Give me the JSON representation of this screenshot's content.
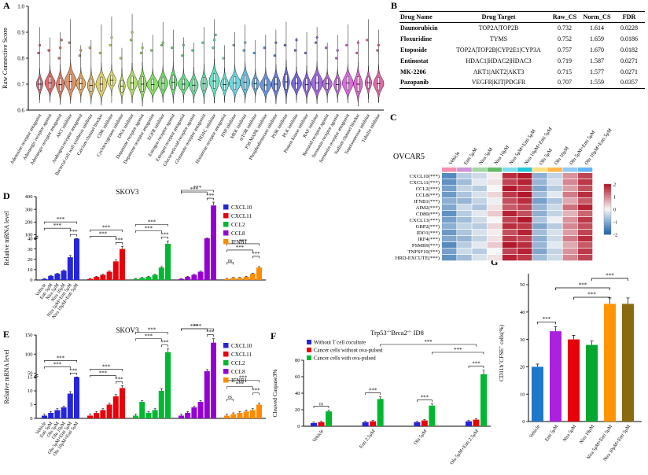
{
  "panelA": {
    "label": "A",
    "ylabel": "Raw Connective Score",
    "chart_data": {
      "type": "violin",
      "ylim": [
        0.6,
        1.0
      ],
      "yticks": [
        0.6,
        0.7,
        0.8,
        0.9,
        1.0
      ],
      "palette": {
        "start_hue": 350,
        "hue_step": 10.3,
        "sat": 66,
        "light": 60
      },
      "categories": [
        "Adenosine receptor antagonist",
        "Adrenergic receptor agonist",
        "Adrenergic receptor antagonist",
        "AKT inhibitor",
        "Androgen receptor antagonist",
        "Bacterial cell wall synthesis inhibitor",
        "Calcium channel blocker",
        "CDK inhibitor",
        "Cyclooxygenase inhibitor",
        "DNA inhibitor",
        "Dopamine receptor agonist",
        "Dopamine receptor antagonist",
        "EGFR inhibitor",
        "Estrogen receptor agonist",
        "Estrogen receptor antagonist",
        "Glucocorticoid receptor agonist",
        "Glutamate receptor antagonist",
        "HDAC inhibitor",
        "Histamine receptor antagonist",
        "HSP inhibitor",
        "MEK inhibitor",
        "mTOR inhibitor",
        "P38 MAPK inhibitor",
        "Phosphodiesterase inhibitor",
        "PI3K inhibitor",
        "PLK inhibitor",
        "Protein kinase inhibitor",
        "RAF inhibitor",
        "Retinoid receptor agonist",
        "Serotonin receptor agonist",
        "Serotonin receptor antagonist",
        "Sodium channel blocker",
        "Topoisomerase inhibitor",
        "Tubulin inhibitor"
      ],
      "medians": [
        0.7,
        0.705,
        0.698,
        0.71,
        0.702,
        0.695,
        0.7,
        0.715,
        0.692,
        0.705,
        0.7,
        0.698,
        0.703,
        0.707,
        0.7,
        0.696,
        0.701,
        0.712,
        0.699,
        0.704,
        0.708,
        0.702,
        0.697,
        0.7,
        0.709,
        0.703,
        0.698,
        0.705,
        0.701,
        0.699,
        0.704,
        0.7,
        0.706,
        0.702
      ],
      "tops": [
        0.92,
        0.88,
        0.9,
        0.95,
        0.85,
        0.87,
        0.93,
        0.96,
        0.84,
        0.97,
        0.86,
        0.89,
        0.94,
        0.91,
        0.88,
        0.86,
        0.92,
        0.95,
        0.85,
        0.9,
        0.93,
        0.87,
        0.89,
        0.91,
        0.94,
        0.88,
        0.9,
        0.92,
        0.86,
        0.89,
        0.93,
        0.87,
        0.95,
        0.91
      ],
      "whisker_bottom": 0.628,
      "outliers": [
        [
          0.82,
          0.85
        ],
        [
          0.83
        ],
        [
          0.8,
          0.84,
          0.87
        ],
        [
          0.86
        ],
        [
          0.81,
          0.83
        ],
        [
          0.84
        ],
        [
          0.82
        ],
        [
          0.85,
          0.88
        ],
        [
          0.8
        ],
        [
          0.87,
          0.9
        ],
        [
          0.82,
          0.84
        ],
        [
          0.83
        ],
        [
          0.85,
          0.86
        ],
        [
          0.84
        ],
        [
          0.81,
          0.85
        ],
        [
          0.83
        ],
        [
          0.86
        ],
        [
          0.84,
          0.87,
          0.89
        ],
        [
          0.8
        ],
        [
          0.85
        ],
        [
          0.83,
          0.86
        ],
        [
          0.82
        ],
        [
          0.84
        ],
        [
          0.81,
          0.86
        ],
        [
          0.85
        ],
        [
          0.83,
          0.87
        ],
        [
          0.82
        ],
        [
          0.86,
          0.88
        ],
        [
          0.84
        ],
        [
          0.8,
          0.83
        ],
        [
          0.85
        ],
        [
          0.82,
          0.86
        ],
        [
          0.87
        ],
        [
          0.83,
          0.85
        ]
      ]
    }
  },
  "panelB": {
    "label": "B",
    "table": {
      "headers": [
        "Drug Name",
        "Drug Target",
        "Raw_CS",
        "Norm_CS",
        "FDR"
      ],
      "rows": [
        [
          "Daunorubicin",
          "TOP2A|TOP2B",
          "0.732",
          "1.614",
          "0.0228"
        ],
        [
          "Floxuridine",
          "TYMS",
          "0.752",
          "1.659",
          "0.0186"
        ],
        [
          "Etoposide",
          "TOP2A|TOP2B|CYP2E1|CYP3A",
          "0.757",
          "1.670",
          "0.0182"
        ],
        [
          "Entinostat",
          "HDAC1|HDAC2|HDAC3",
          "0.719",
          "1.587",
          "0.0271"
        ],
        [
          "MK-2206",
          "AKT1|AKT2|AKT3",
          "0.715",
          "1.577",
          "0.0271"
        ],
        [
          "Pazopanib",
          "VEGFR|KIT|PDGFR",
          "0.707",
          "1.559",
          "0.0357"
        ]
      ]
    }
  },
  "panelC": {
    "label": "C",
    "cell_line": "OVCAR5",
    "chart_data": {
      "type": "heatmap",
      "columns": [
        "Vehicle",
        "Enti 5μM",
        "Nira 5μM",
        "Nira 10μM",
        "Nira 5μM+Enti 5μM",
        "Nira 10μM+Enti 5μM",
        "Olu 5μM",
        "Olu 10μM",
        "Olu 5μM+Enti 5μM",
        "Olu 10μM+Enti 5μM"
      ],
      "column_colors": [
        "#f48fb1",
        "#ce93d8",
        "#a5d6a7",
        "#66bb6a",
        "#80deea",
        "#26c6da",
        "#ffe082",
        "#ffb74d",
        "#90caf9",
        "#64b5f6"
      ],
      "rows": [
        "CXCL10(***)",
        "CXCL11(***)",
        "CCL2(***)",
        "CCL8(***)",
        "IFNB1(***)",
        "AIM2(***)",
        "CD80(***)",
        "CXCL13(***)",
        "GBP2(***)",
        "IDO1(***)",
        "IRF4(***)",
        "PSMB9(***)",
        "TNFSF10(***)",
        "HRD-EXCUTE(***)"
      ],
      "matrix": [
        [
          -1.5,
          -0.6,
          -0.4,
          0.1,
          1.8,
          2.0,
          -1.0,
          -0.5,
          0.9,
          1.6
        ],
        [
          -1.4,
          -0.8,
          -0.2,
          0.2,
          1.6,
          1.9,
          -0.9,
          -0.3,
          1.0,
          1.7
        ],
        [
          -1.2,
          -0.5,
          -0.6,
          0.0,
          2.0,
          1.7,
          -1.1,
          -0.6,
          0.8,
          1.5
        ],
        [
          -1.3,
          -0.7,
          -0.3,
          0.3,
          1.7,
          2.0,
          -0.8,
          -0.2,
          1.1,
          1.8
        ],
        [
          -1.0,
          -0.9,
          -0.5,
          -0.1,
          1.5,
          1.8,
          -1.2,
          -0.7,
          0.7,
          1.4
        ],
        [
          -1.1,
          -0.4,
          -0.7,
          0.2,
          1.4,
          1.6,
          -0.9,
          -0.4,
          1.2,
          1.9
        ],
        [
          -1.4,
          -0.6,
          -0.2,
          0.4,
          1.9,
          1.5,
          -1.0,
          -0.5,
          0.6,
          1.3
        ],
        [
          -1.2,
          -0.8,
          -0.4,
          0.0,
          1.6,
          2.0,
          -0.7,
          -0.1,
          0.9,
          1.7
        ],
        [
          -1.0,
          -0.5,
          -0.6,
          0.3,
          1.8,
          1.7,
          -1.1,
          -0.6,
          1.0,
          1.5
        ],
        [
          -1.3,
          -0.7,
          -0.3,
          0.1,
          1.5,
          1.9,
          -0.8,
          -0.3,
          0.8,
          1.6
        ],
        [
          -1.1,
          -0.9,
          -0.5,
          0.2,
          1.7,
          1.6,
          -1.0,
          -0.4,
          1.1,
          1.8
        ],
        [
          -1.5,
          -0.6,
          -0.2,
          0.4,
          2.0,
          1.8,
          -0.9,
          -0.2,
          0.7,
          1.4
        ],
        [
          -1.2,
          -0.4,
          -0.6,
          0.0,
          1.6,
          1.9,
          -1.1,
          -0.5,
          0.9,
          1.7
        ],
        [
          -1.4,
          -0.8,
          -0.3,
          0.2,
          1.9,
          1.7,
          -0.8,
          -0.4,
          1.0,
          1.6
        ]
      ],
      "colorbar_ticks": [
        2,
        1,
        0,
        -1,
        -2
      ],
      "cmap": {
        "pos": "#b2182b",
        "mid": "#f7f7f7",
        "neg": "#2166ac"
      }
    }
  },
  "panelD": {
    "label": "D",
    "title": "SKOV3",
    "ylabel": "Relative mRNA level",
    "chart_data": {
      "type": "bar-grouped-broken-axis",
      "genes": [
        "CXCL10",
        "CXCL11",
        "CCL2",
        "CCL8",
        "IFNB1"
      ],
      "gene_colors": [
        "#2525d9",
        "#e8000b",
        "#00b830",
        "#9400d3",
        "#ff8c00"
      ],
      "treatments": [
        "Vehicle",
        "Enti 5μM",
        "Nira 5μM",
        "Nira 10μM",
        "Nira 5μM+Enti 5μM",
        "Nira 10μM+Enti 5μM"
      ],
      "values": [
        [
          1,
          4,
          6,
          9,
          22,
          40
        ],
        [
          1,
          3,
          5,
          8,
          18,
          30
        ],
        [
          1,
          2,
          3,
          5,
          12,
          35
        ],
        [
          1,
          3,
          5,
          8,
          45,
          330
        ],
        [
          1,
          2,
          2,
          3,
          6,
          12
        ]
      ],
      "axis": {
        "lower": {
          "max": 40,
          "ticks": [
            0,
            10,
            20,
            30,
            40
          ]
        },
        "upper": {
          "min": 100,
          "max": 400,
          "ticks": [
            100,
            200,
            300,
            400
          ]
        }
      },
      "brackets": [
        [
          [
            4,
            5,
            "***"
          ],
          [
            0,
            4,
            "***"
          ],
          [
            0,
            5,
            "***"
          ]
        ],
        [
          [
            4,
            5,
            "***"
          ],
          [
            0,
            4,
            "***"
          ],
          [
            0,
            5,
            "***"
          ]
        ],
        [
          [
            4,
            5,
            "***"
          ],
          [
            0,
            4,
            "***"
          ],
          [
            0,
            5,
            "***"
          ]
        ],
        [
          [
            4,
            5,
            "***"
          ],
          [
            0,
            4,
            "***"
          ],
          [
            0,
            5,
            "***"
          ]
        ],
        [
          [
            0,
            1,
            "ns"
          ],
          [
            4,
            5,
            "***"
          ],
          [
            0,
            4,
            "***"
          ],
          [
            0,
            5,
            "***"
          ]
        ]
      ]
    }
  },
  "panelE": {
    "label": "E",
    "title": "SKOV3",
    "ylabel": "Relative mRNA level",
    "chart_data": {
      "type": "bar-grouped-broken-axis",
      "genes": [
        "CXCL10",
        "CXCL11",
        "CCL2",
        "CCL8",
        "IFNB1"
      ],
      "gene_colors": [
        "#2525d9",
        "#e8000b",
        "#00b830",
        "#9400d3",
        "#ff8c00"
      ],
      "treatments": [
        "Vehicle",
        "Enti 5μM",
        "Olu 5μM",
        "Olu 10μM",
        "Olu 5μM+Enti 5μM",
        "Olu 10μM+Enti 5μM"
      ],
      "values": [
        [
          1,
          2,
          3,
          4,
          9,
          15
        ],
        [
          1,
          2,
          3,
          5,
          8,
          11
        ],
        [
          1,
          6,
          2,
          3,
          10,
          105
        ],
        [
          1,
          2,
          4,
          6,
          55,
          130
        ],
        [
          1,
          1.5,
          2,
          2.5,
          3,
          5
        ]
      ],
      "axis": {
        "lower": {
          "max": 15,
          "ticks": [
            0,
            5,
            10,
            15
          ]
        },
        "upper": {
          "min": 50,
          "max": 150,
          "ticks": [
            50,
            100,
            150
          ]
        }
      },
      "brackets": [
        [
          [
            4,
            5,
            "***"
          ],
          [
            0,
            4,
            "***"
          ],
          [
            0,
            5,
            "***"
          ]
        ],
        [
          [
            4,
            5,
            "***"
          ],
          [
            0,
            4,
            "***"
          ],
          [
            0,
            5,
            "***"
          ]
        ],
        [
          [
            4,
            5,
            "***"
          ],
          [
            0,
            4,
            "***"
          ],
          [
            0,
            5,
            "***"
          ]
        ],
        [
          [
            4,
            5,
            "***"
          ],
          [
            0,
            4,
            "***"
          ],
          [
            0,
            5,
            "***"
          ]
        ],
        [
          [
            0,
            1,
            "ns"
          ],
          [
            4,
            5,
            "***"
          ],
          [
            0,
            4,
            "***"
          ],
          [
            0,
            5,
            "***"
          ]
        ]
      ]
    }
  },
  "panelF": {
    "label": "F",
    "title_parts": [
      {
        "t": "Trp53"
      },
      {
        "t": "-/-",
        "sup": true
      },
      {
        "t": "Brca2"
      },
      {
        "t": "-/-",
        "sup": true
      },
      {
        "t": " ID8"
      }
    ],
    "ylabel": "Cleaved Caspase3%",
    "chart_data": {
      "type": "bar-grouped",
      "series": [
        {
          "name": "Without T cell coculture",
          "color": "#2525d9",
          "values": [
            4,
            5,
            5,
            6
          ]
        },
        {
          "name": "Cancer cells without ova-pulsed",
          "color": "#e8000b",
          "values": [
            5,
            6,
            7,
            8
          ]
        },
        {
          "name": "Cancer cells with ova-pulsed",
          "color": "#00b830",
          "values": [
            18,
            33,
            25,
            63
          ]
        }
      ],
      "categories": [
        "Vehicle",
        "Enti 2.5μM",
        "Olu 5μM",
        "Olu 5μM+Enti 2.5μM"
      ],
      "ylim": [
        0,
        80
      ],
      "yticks": [
        0,
        20,
        40,
        60,
        80
      ],
      "brackets": [
        {
          "a": [
            0,
            0
          ],
          "b": [
            0,
            2
          ],
          "label": "ns",
          "lvl": 0
        },
        {
          "a": [
            1,
            0
          ],
          "b": [
            1,
            2
          ],
          "label": "***",
          "lvl": 0
        },
        {
          "a": [
            2,
            0
          ],
          "b": [
            2,
            2
          ],
          "label": "***",
          "lvl": 0
        },
        {
          "a": [
            3,
            0
          ],
          "b": [
            3,
            2
          ],
          "label": "***",
          "lvl": 0
        },
        {
          "a": [
            2,
            2
          ],
          "b": [
            3,
            2
          ],
          "label": "***",
          "lvl": 1
        },
        {
          "a": [
            1,
            2
          ],
          "b": [
            3,
            1
          ],
          "label": "***",
          "lvl": 2
        }
      ]
    }
  },
  "panelG": {
    "label": "G",
    "ylabel_parts": [
      {
        "t": "CD11b"
      },
      {
        "t": "+",
        "sup": true
      },
      {
        "t": "CFSE"
      },
      {
        "t": "+",
        "sup": true
      },
      {
        "t": " cells(%)"
      }
    ],
    "chart_data": {
      "type": "bar",
      "categories": [
        "Vehicle",
        "Enti 5μM",
        "Nira 5μM",
        "Nira 10μM",
        "Nira 5μM+Enti 5μM",
        "Nira 10μM+Enti 5μM"
      ],
      "values": [
        20,
        33,
        30,
        28,
        43,
        43
      ],
      "colors": [
        "#1e78c8",
        "#aa22dd",
        "#e8000b",
        "#00a830",
        "#ff9500",
        "#8a6a10"
      ],
      "ylim": [
        0,
        50
      ],
      "yticks": [
        0,
        10,
        20,
        30,
        40,
        50
      ],
      "brackets": [
        {
          "a": 0,
          "b": 1,
          "label": "***",
          "lvl": 0
        },
        {
          "a": 2,
          "b": 4,
          "label": "***",
          "lvl": 1
        },
        {
          "a": 1,
          "b": 4,
          "label": "***",
          "lvl": 2
        },
        {
          "a": 3,
          "b": 5,
          "label": "***",
          "lvl": 3
        }
      ]
    }
  }
}
